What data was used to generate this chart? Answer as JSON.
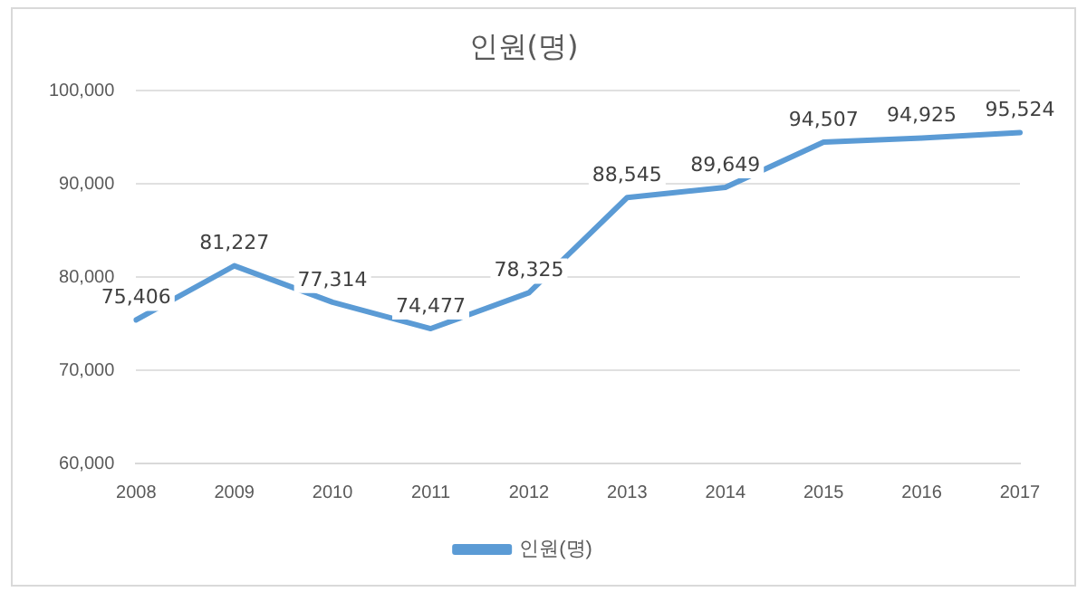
{
  "chart_data": {
    "type": "line",
    "title": "인원(명)",
    "categories": [
      "2008",
      "2009",
      "2010",
      "2011",
      "2012",
      "2013",
      "2014",
      "2015",
      "2016",
      "2017"
    ],
    "series": [
      {
        "name": "인원(명)",
        "color": "#5b9bd5",
        "values": [
          75406,
          81227,
          77314,
          74477,
          78325,
          88545,
          89649,
          94507,
          94925,
          95524
        ],
        "value_labels": [
          "75,406",
          "81,227",
          "77,314",
          "74,477",
          "78,325",
          "88,545",
          "89,649",
          "94,507",
          "94,925",
          "95,524"
        ]
      }
    ],
    "ylim": [
      60000,
      100000
    ],
    "yticks": [
      {
        "value": 60000,
        "label": "60,000"
      },
      {
        "value": 70000,
        "label": "70,000"
      },
      {
        "value": 80000,
        "label": "80,000"
      },
      {
        "value": 90000,
        "label": "90,000"
      },
      {
        "value": 100000,
        "label": "100,000"
      }
    ],
    "grid": "y",
    "legend": "bottom",
    "marker": "none",
    "line_style": "solid"
  }
}
